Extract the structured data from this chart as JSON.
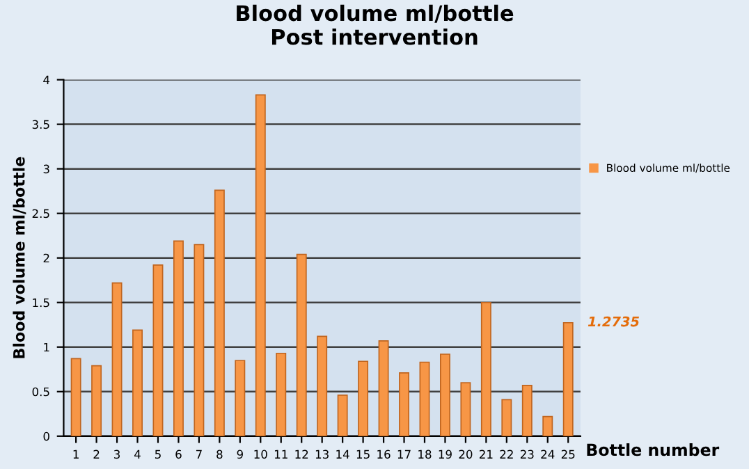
{
  "chart_data": {
    "type": "bar",
    "title": "Blood volume ml/bottle\nPost intervention",
    "xlabel": "Bottle number",
    "ylabel": "Blood volume ml/bottle",
    "categories": [
      "1",
      "2",
      "3",
      "4",
      "5",
      "6",
      "7",
      "8",
      "9",
      "10",
      "11",
      "12",
      "13",
      "14",
      "15",
      "16",
      "17",
      "18",
      "19",
      "20",
      "21",
      "22",
      "23",
      "24",
      "25"
    ],
    "series": [
      {
        "name": "Blood volume ml/bottle",
        "color": "#f79646",
        "values": [
          0.87,
          0.79,
          1.72,
          1.19,
          1.92,
          2.19,
          2.15,
          2.76,
          0.85,
          3.83,
          0.93,
          2.04,
          1.12,
          0.46,
          0.84,
          1.07,
          0.71,
          0.83,
          0.92,
          0.6,
          1.5,
          0.41,
          0.57,
          0.22,
          1.2735
        ]
      }
    ],
    "ylim": [
      0,
      4
    ],
    "yticks": [
      0,
      0.5,
      1,
      1.5,
      2,
      2.5,
      3,
      3.5,
      4
    ],
    "grid": "y",
    "legend": "right",
    "annotations": [
      {
        "text": "1.2735",
        "x": "25",
        "y": 1.2735
      }
    ]
  }
}
